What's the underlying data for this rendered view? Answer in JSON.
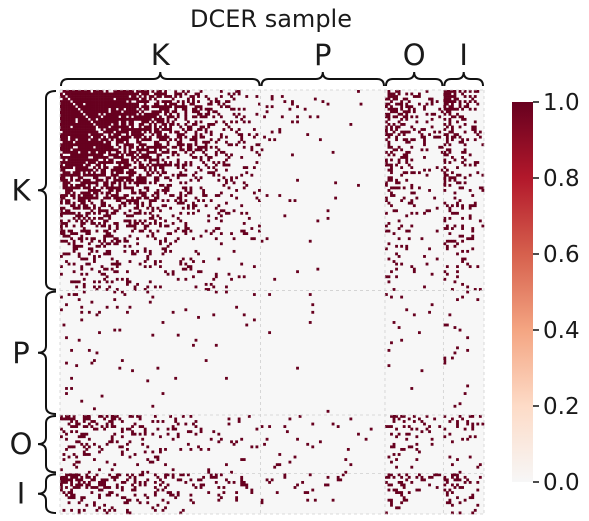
{
  "chart_data": {
    "type": "heatmap",
    "title": "DCER sample",
    "xlabel": "",
    "ylabel": "",
    "groups": [
      {
        "label": "K",
        "size": 79
      },
      {
        "label": "P",
        "size": 49
      },
      {
        "label": "O",
        "size": 23
      },
      {
        "label": "I",
        "size": 16
      }
    ],
    "value_range": [
      0,
      1
    ],
    "binary_values": [
      0,
      1
    ],
    "colorbar": {
      "ticks": [
        "0.0",
        "0.2",
        "0.4",
        "0.6",
        "0.8",
        "1.0"
      ],
      "tick_values": [
        0,
        0.2,
        0.4,
        0.6,
        0.8,
        1.0
      ],
      "colormap": "RdBu_r (upper half)",
      "color_min": "#f7f7f7",
      "color_max": "#67001f",
      "stops": [
        "#f7f7f7",
        "#fddbc7",
        "#f4a582",
        "#d6604d",
        "#b2182b",
        "#67001f"
      ]
    },
    "block_density": [
      [
        0.65,
        0.05,
        0.45,
        0.5
      ],
      [
        0.06,
        0.01,
        0.06,
        0.05
      ],
      [
        0.35,
        0.06,
        0.3,
        0.3
      ],
      [
        0.5,
        0.08,
        0.35,
        0.45
      ]
    ],
    "grid": true,
    "legend": "right"
  }
}
